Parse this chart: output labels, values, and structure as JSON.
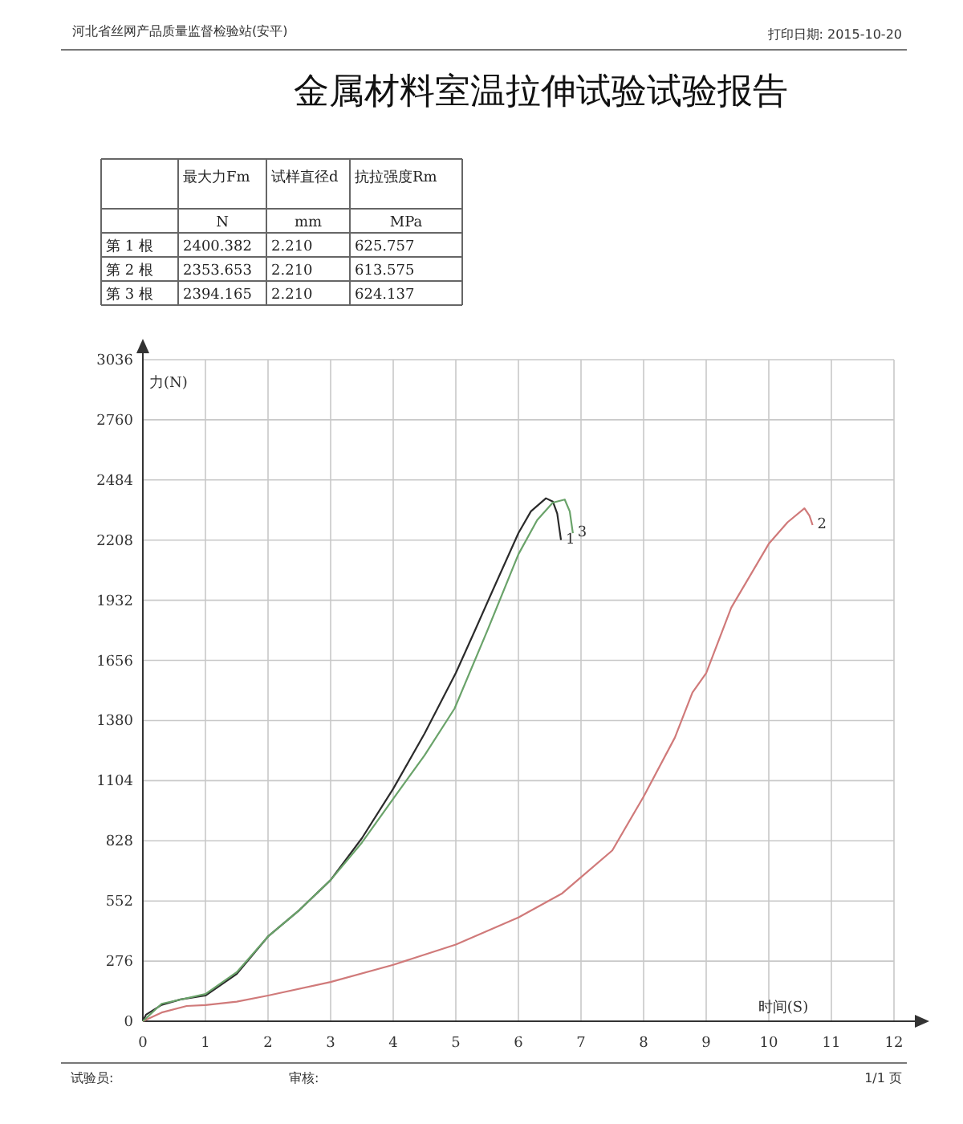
{
  "chart_data": [
    {
      "type": "other",
      "title": "金属材料室温拉伸试验试验报告",
      "annotations": [
        "河北省丝网产品质量监督检验站(安平)",
        "打印日期: 2015-10-20",
        "最大力Fm",
        "试样直径d",
        "抗拉强度Rm",
        "N",
        "mm",
        "MPa",
        "第 1 根",
        "2400.382",
        "2.210",
        "625.757",
        "第 2 根",
        "2353.653",
        "2.210",
        "613.575",
        "第 3 根",
        "2394.165",
        "2.210",
        "624.137"
      ]
    },
    {
      "type": "line",
      "ylabel": "力(N)",
      "xlabel": "时间(S)",
      "xlim": [
        0,
        12
      ],
      "xticks": [
        0,
        1,
        2,
        3,
        4,
        5,
        6,
        7,
        8,
        9,
        10,
        11,
        12
      ],
      "ylim": [
        0,
        3036
      ],
      "yticks": [
        0,
        276,
        552,
        828,
        1104,
        1380,
        1656,
        1932,
        2208,
        2484,
        2760,
        3036
      ],
      "grid": true,
      "marker": "none",
      "line_style": "solid",
      "series": [
        {
          "name": "1",
          "color": "#2b2b2b",
          "x": [
            0,
            0.05,
            0.3,
            0.6,
            1,
            1.5,
            2,
            2.5,
            3,
            3.5,
            4,
            4.5,
            5,
            5.3,
            5.58,
            6,
            6.2,
            6.44,
            6.55,
            6.62,
            6.68
          ],
          "values": [
            0,
            30,
            75,
            100,
            118,
            217,
            389,
            510,
            648,
            840,
            1067,
            1320,
            1598,
            1790,
            1971,
            2240,
            2340,
            2400,
            2385,
            2330,
            2208
          ]
        },
        {
          "name": "2",
          "color": "#d07a7a",
          "x": [
            0,
            0.3,
            0.7,
            1,
            1.5,
            2,
            3,
            4,
            5,
            6,
            6.7,
            7,
            7.5,
            8,
            8.5,
            8.78,
            9,
            9.4,
            10,
            10.3,
            10.57,
            10.65,
            10.7
          ],
          "values": [
            0,
            40,
            70,
            74,
            90,
            118,
            180,
            259,
            352,
            476,
            587,
            661,
            784,
            1031,
            1302,
            1508,
            1598,
            1898,
            2191,
            2290,
            2354,
            2320,
            2277
          ]
        },
        {
          "name": "3",
          "color": "#6aa36a",
          "x": [
            0,
            0.3,
            1,
            1.5,
            2,
            2.5,
            3,
            3.5,
            4,
            4.5,
            4.98,
            5.5,
            6,
            6.3,
            6.55,
            6.74,
            6.82,
            6.87
          ],
          "values": [
            0,
            80,
            125,
            225,
            389,
            510,
            648,
            820,
            1021,
            1220,
            1435,
            1790,
            2143,
            2300,
            2380,
            2394,
            2340,
            2240
          ]
        }
      ],
      "annotations": [
        "试验员:",
        "审核:",
        "1/1 页"
      ]
    }
  ]
}
